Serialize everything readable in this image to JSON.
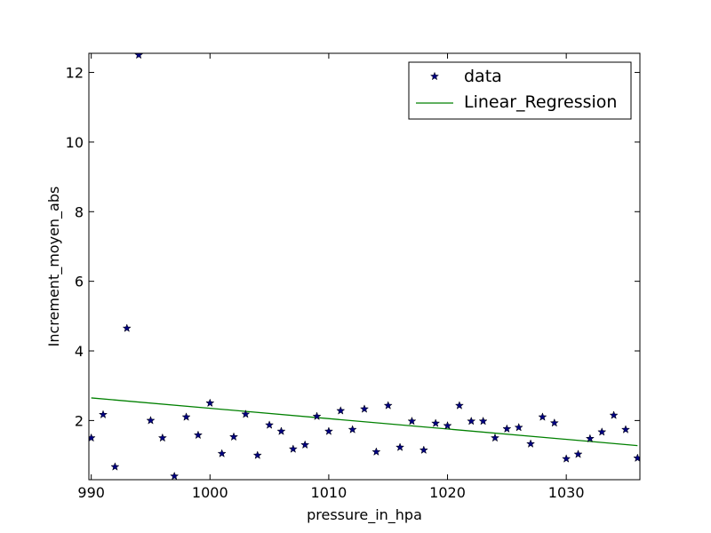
{
  "chart_data": {
    "type": "scatter",
    "title": "",
    "xlabel": "pressure_in_hpa",
    "ylabel": "Increment_moyen_abs",
    "xlim": [
      989.8,
      1036.2
    ],
    "ylim": [
      0.3,
      12.55
    ],
    "xticks": [
      990,
      1000,
      1010,
      1020,
      1030
    ],
    "yticks": [
      2,
      4,
      6,
      8,
      10,
      12
    ],
    "grid": false,
    "legend_position": "top-right",
    "colors": {
      "data": "#000080",
      "regression": "#008000"
    },
    "series": [
      {
        "name": "data",
        "kind": "scatter",
        "marker": "star",
        "x": [
          990,
          991,
          992,
          993,
          994,
          995,
          996,
          997,
          998,
          999,
          1000,
          1001,
          1002,
          1003,
          1004,
          1005,
          1006,
          1007,
          1008,
          1009,
          1010,
          1011,
          1012,
          1013,
          1014,
          1015,
          1016,
          1017,
          1018,
          1019,
          1020,
          1021,
          1022,
          1023,
          1024,
          1025,
          1026,
          1027,
          1028,
          1029,
          1030,
          1031,
          1032,
          1033,
          1034,
          1035,
          1036
        ],
        "y": [
          1.5,
          2.17,
          0.67,
          4.65,
          12.5,
          2.0,
          1.5,
          0.4,
          2.1,
          1.58,
          2.5,
          1.05,
          1.53,
          2.18,
          1.0,
          1.87,
          1.69,
          1.18,
          1.3,
          2.12,
          1.69,
          2.28,
          1.74,
          2.33,
          1.1,
          2.43,
          1.23,
          1.98,
          1.15,
          1.92,
          1.85,
          2.43,
          1.98,
          1.98,
          1.5,
          1.76,
          1.8,
          1.33,
          2.1,
          1.93,
          0.9,
          1.03,
          1.48,
          1.67,
          2.15,
          1.74,
          0.92
        ]
      },
      {
        "name": "Linear_Regression",
        "kind": "line",
        "x": [
          990,
          1036
        ],
        "y": [
          2.65,
          1.28
        ]
      }
    ]
  }
}
